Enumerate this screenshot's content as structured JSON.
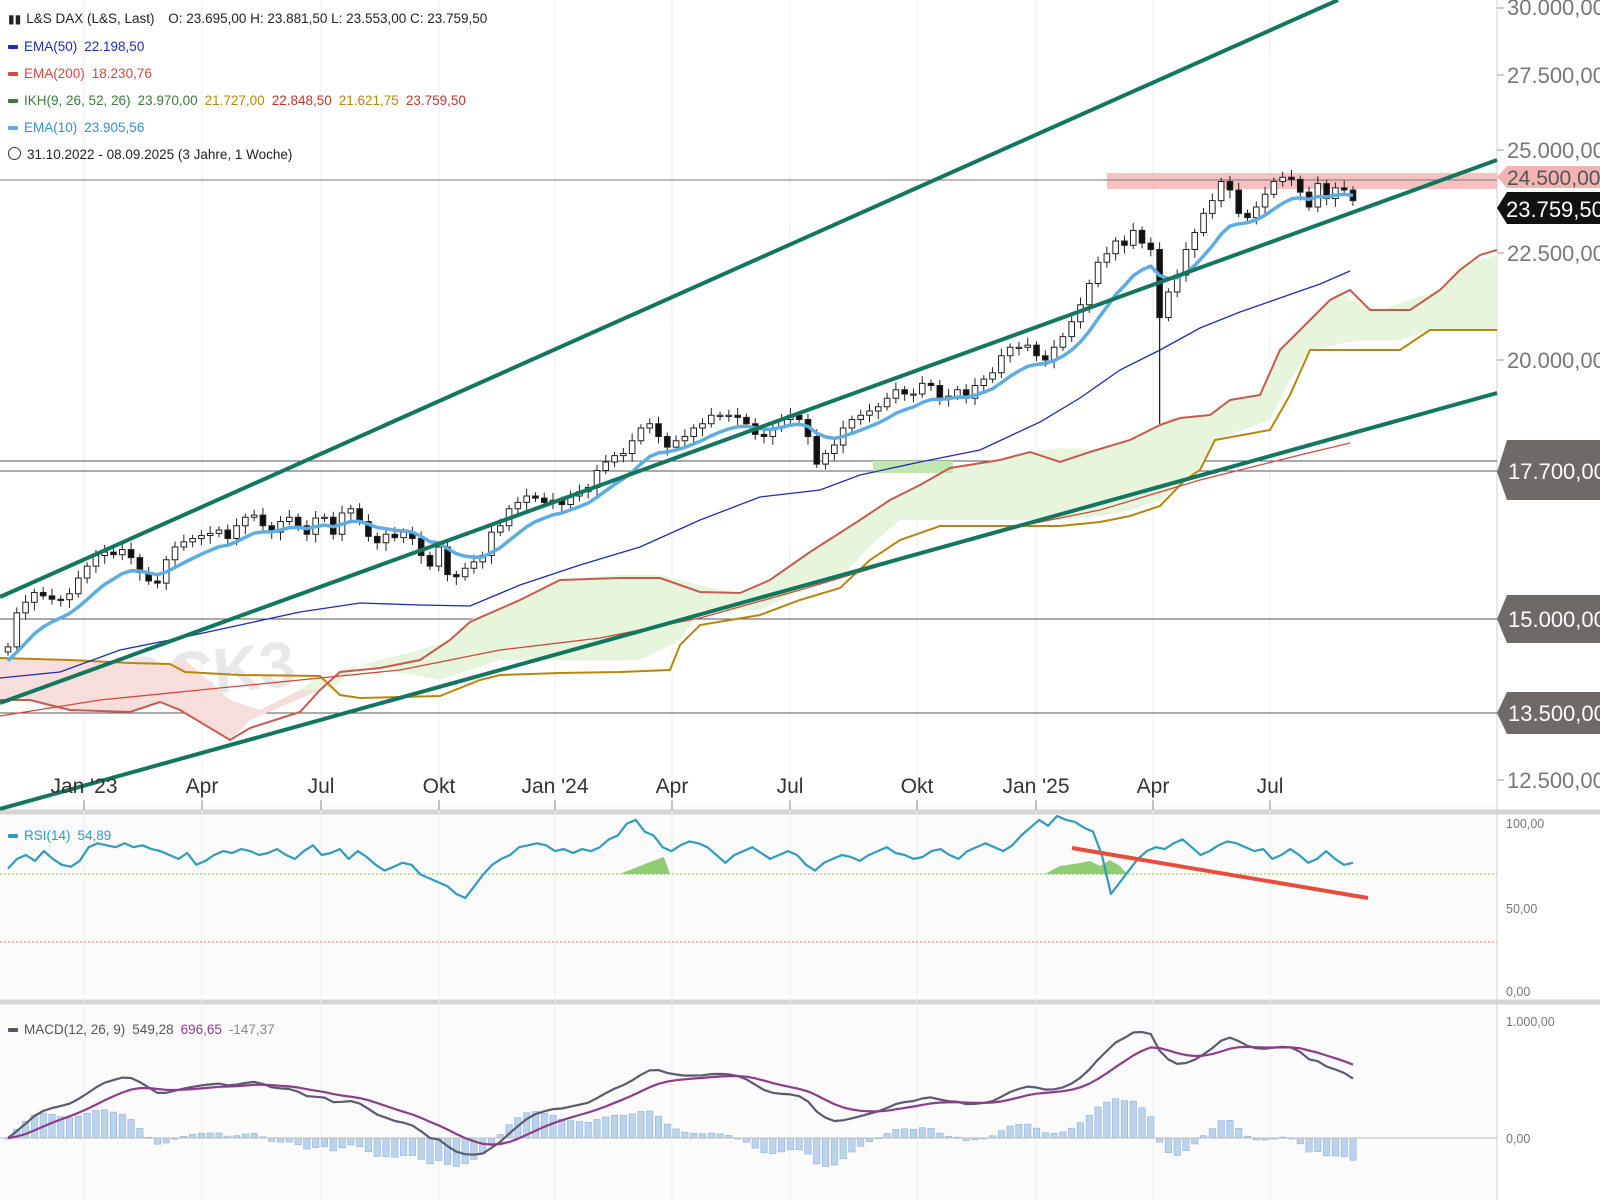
{
  "header": {
    "instrument": "L&S DAX (L&S, Last)",
    "ohlc": "O: 23.695,00   H: 23.881,50   L: 23.553,00   C: 23.759,50",
    "range": "31.10.2022 - 08.09.2025  (3 Jahre, 1 Woche)"
  },
  "legend": [
    {
      "label": "EMA(50)",
      "value": "22.198,50",
      "color": "#1f2bb5"
    },
    {
      "label": "EMA(200)",
      "value": "18.230,76",
      "color": "#d04a3c"
    },
    {
      "label": "IKH(9, 26, 52, 26)",
      "values": [
        "23.970,00",
        "21.727,00",
        "22.848,50",
        "21.621,75",
        "23.759,50"
      ],
      "colors": [
        "#3d7a3d",
        "#b8860b",
        "#c0392b",
        "#b8860b",
        "#c0392b"
      ],
      "color": "#3d7a3d"
    },
    {
      "label": "EMA(10)",
      "value": "23.905,56",
      "color": "#5dade2"
    }
  ],
  "watermark": "STOCK3",
  "price_axis": {
    "ticks": [
      "30.000,00",
      "27.500,00",
      "25.000,00",
      "22.500,00",
      "20.000,00",
      "12.500,00"
    ],
    "level_badges": [
      "24.500,00",
      "17.700,00",
      "15.000,00",
      "13.500,00"
    ],
    "current_badge": "23.759,50"
  },
  "time_axis": {
    "labels": [
      "Jan '23",
      "Apr",
      "Jul",
      "Okt",
      "Jan '24",
      "Apr",
      "Jul",
      "Okt",
      "Jan '25",
      "Apr",
      "Jul"
    ]
  },
  "rsi": {
    "label": "RSI(14)",
    "value": "54,89",
    "ticks": [
      "100,00",
      "50,00",
      "0,00"
    ],
    "color": "#2e9bbf"
  },
  "macd": {
    "label": "MACD(12, 26, 9)",
    "values": [
      "549,28",
      "696,65",
      "-147,37"
    ],
    "ticks": [
      "1.000,00",
      "0,00"
    ],
    "color": "#555566"
  },
  "colors": {
    "ema10": "#5dade2",
    "ema50": "#1f2bb5",
    "ema200": "#d04a3c",
    "channel": "#13775f",
    "resistance_zone": "#f4b6b6",
    "cloud": "#e6f5dc"
  },
  "chart_data": [
    {
      "type": "candlestick",
      "title": "L&S DAX (L&S, Last)",
      "x_range": [
        "31.10.2022",
        "08.09.2025"
      ],
      "ylim": [
        12000,
        30000
      ],
      "weekly_close": [
        13250,
        14050,
        14300,
        14530,
        14450,
        14370,
        14360,
        14500,
        14870,
        15150,
        15400,
        15480,
        15420,
        15540,
        15350,
        15000,
        14800,
        14750,
        15300,
        15600,
        15720,
        15800,
        15870,
        15920,
        16000,
        15800,
        16100,
        16300,
        16350,
        16100,
        15950,
        16200,
        16300,
        16100,
        15900,
        16280,
        16300,
        15900,
        16400,
        16500,
        16200,
        15850,
        15700,
        15900,
        15820,
        15950,
        15800,
        15400,
        15150,
        15600,
        14950,
        14900,
        15100,
        15250,
        15400,
        15950,
        16100,
        16500,
        16650,
        16800,
        16750,
        16650,
        16700,
        16600,
        16800,
        16900,
        17000,
        17400,
        17600,
        17750,
        17800,
        18100,
        18400,
        18500,
        18200,
        17950,
        18100,
        18200,
        18400,
        18500,
        18700,
        18700,
        18700,
        18650,
        18500,
        18250,
        18200,
        18400,
        18600,
        18700,
        18600,
        18200,
        17550,
        17800,
        18000,
        18400,
        18600,
        18700,
        18800,
        18900,
        19100,
        19300,
        19200,
        19200,
        19450,
        19400,
        19100,
        19150,
        19300,
        19100,
        19400,
        19550,
        19700,
        20100,
        20300,
        20300,
        20350,
        20100,
        20000,
        20300,
        20550,
        20900,
        21300,
        21800,
        22300,
        22500,
        22800,
        22700,
        23050,
        22750,
        22600,
        21000,
        21600,
        22000,
        22600,
        23000,
        23450,
        23750,
        24200,
        24000,
        23450,
        23350,
        23600,
        23900,
        24200,
        24300,
        24250,
        23950,
        23600,
        24150,
        23800,
        24050,
        24000,
        23750
      ],
      "levels": [
        {
          "label": "24.500,00"
        },
        {
          "label": "17.700,00"
        },
        {
          "label": "15.000,00"
        },
        {
          "label": "13.500,00"
        }
      ],
      "series": [
        {
          "name": "EMA(50)",
          "last": 22198.5
        },
        {
          "name": "EMA(200)",
          "last": 18230.76
        },
        {
          "name": "EMA(10)",
          "last": 23905.56
        }
      ],
      "trend_channel": [
        {
          "from": [
            "31.10.2022",
            15000
          ],
          "to": [
            "08.09.2025",
            24600
          ]
        },
        {
          "from": [
            "31.10.2022",
            18000
          ],
          "to": [
            "31.07.2025",
            29900
          ]
        },
        {
          "from": [
            "31.10.2022",
            11800
          ],
          "to": [
            "08.09.2025",
            19900
          ]
        }
      ],
      "resistance_zone": [
        24000,
        24600
      ]
    },
    {
      "type": "line",
      "title": "RSI(14)",
      "ylim": [
        0,
        100
      ],
      "overbought": 70,
      "oversold": 30,
      "last": 54.89,
      "divergence_line": {
        "from": 82,
        "to": 58
      }
    },
    {
      "type": "line",
      "title": "MACD(12, 26, 9)",
      "ylim": [
        -300,
        1100
      ],
      "last": {
        "macd": 549.28,
        "signal": 696.65,
        "histogram": -147.37
      }
    }
  ]
}
